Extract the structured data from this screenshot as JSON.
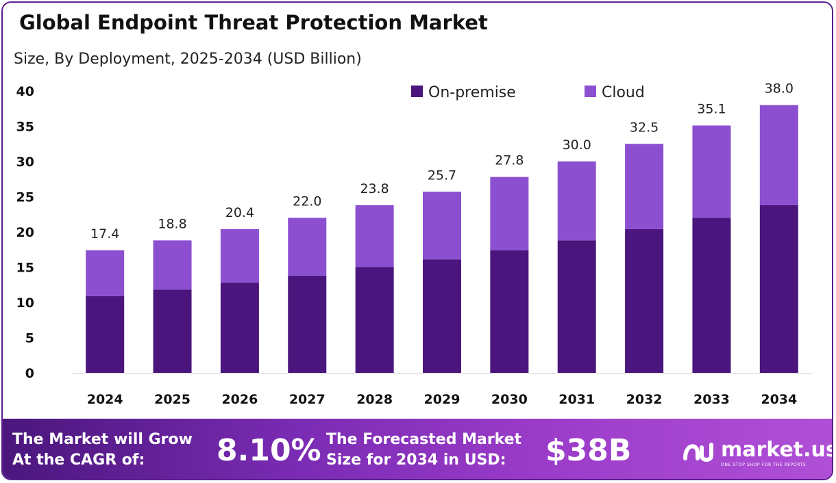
{
  "chart_data": {
    "type": "bar",
    "stacked": true,
    "title": "Global Endpoint Threat Protection Market",
    "subtitle": "Size, By Deployment, 2025-2034 (USD Billion)",
    "categories": [
      "2024",
      "2025",
      "2026",
      "2027",
      "2028",
      "2029",
      "2030",
      "2031",
      "2032",
      "2033",
      "2034"
    ],
    "series": [
      {
        "name": "On-premise",
        "color": "#4a157c",
        "values": [
          10.9,
          11.8,
          12.8,
          13.8,
          15.0,
          16.1,
          17.4,
          18.8,
          20.4,
          22.0,
          23.8
        ]
      },
      {
        "name": "Cloud",
        "color": "#8c4fd0",
        "values": [
          6.5,
          7.0,
          7.6,
          8.2,
          8.8,
          9.6,
          10.4,
          11.2,
          12.1,
          13.1,
          14.2
        ]
      }
    ],
    "totals": [
      "17.4",
      "18.8",
      "20.4",
      "22.0",
      "23.8",
      "25.7",
      "27.8",
      "30.0",
      "32.5",
      "35.1",
      "38.0"
    ],
    "y_ticks": [
      "0",
      "5",
      "10",
      "15",
      "20",
      "25",
      "30",
      "35",
      "40"
    ],
    "ylim": [
      0,
      40
    ],
    "grid": false,
    "legend_position": "top-right"
  },
  "footer": {
    "cagr_line1": "The Market will Grow",
    "cagr_line2": "At the CAGR of:",
    "cagr_value": "8.10%",
    "forecast_line1": "The Forecasted Market",
    "forecast_line2": "Size for 2034 in USD:",
    "forecast_value": "$38B",
    "brand_name": "market.us",
    "brand_tagline": "ONE STOP SHOP FOR THE REPORTS"
  }
}
